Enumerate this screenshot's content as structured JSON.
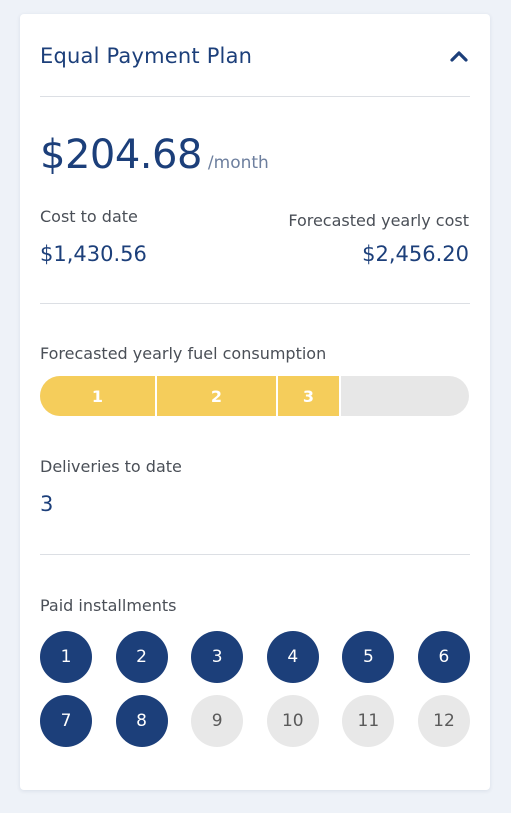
{
  "header": {
    "title": "Equal Payment Plan",
    "toggle_icon": "chevron-up-icon"
  },
  "price": {
    "amount": "$204.68",
    "period": "/month"
  },
  "costs": {
    "to_date_label": "Cost to date",
    "to_date_value": "$1,430.56",
    "forecast_label": "Forecasted yearly cost",
    "forecast_value": "$2,456.20"
  },
  "consumption": {
    "label": "Forecasted yearly fuel consumption",
    "segments": [
      "1",
      "2",
      "3"
    ],
    "filled_fraction": 0.7
  },
  "deliveries": {
    "label": "Deliveries to date",
    "value": "3"
  },
  "installments": {
    "label": "Paid installments",
    "items": [
      {
        "n": "1",
        "paid": true
      },
      {
        "n": "2",
        "paid": true
      },
      {
        "n": "3",
        "paid": true
      },
      {
        "n": "4",
        "paid": true
      },
      {
        "n": "5",
        "paid": true
      },
      {
        "n": "6",
        "paid": true
      },
      {
        "n": "7",
        "paid": true
      },
      {
        "n": "8",
        "paid": true
      },
      {
        "n": "9",
        "paid": false
      },
      {
        "n": "10",
        "paid": false
      },
      {
        "n": "11",
        "paid": false
      },
      {
        "n": "12",
        "paid": false
      }
    ]
  },
  "colors": {
    "primary": "#1c3f7a",
    "accent_yellow": "#f5cd5b",
    "unpaid": "#e8e8e8"
  }
}
